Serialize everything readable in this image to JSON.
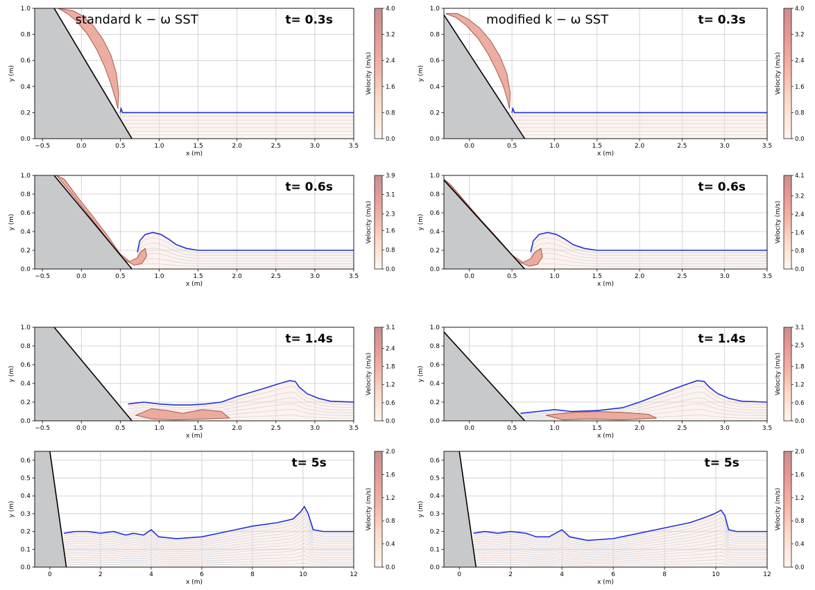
{
  "figure": {
    "xlabel": "x (m)",
    "ylabel": "y (m)",
    "colorbar_label": "Velocity (m/s)"
  },
  "chart_data": [
    {
      "id": "std-t03",
      "type": "heatmap",
      "title": "standard k − ω SST",
      "time_label": "t= 0.3s",
      "xlim": [
        -0.6,
        3.5
      ],
      "ylim": [
        0,
        1.0
      ],
      "xticks": [
        -0.5,
        0.0,
        0.5,
        1.0,
        1.5,
        2.0,
        2.5,
        3.0,
        3.5
      ],
      "yticks": [
        0.0,
        0.2,
        0.4,
        0.6,
        0.8,
        1.0
      ],
      "colorbar_ticks": [
        0.0,
        0.8,
        1.6,
        2.4,
        3.2,
        4.0
      ],
      "slope": [
        [
          -0.35,
          1.0
        ],
        [
          0.65,
          0.0
        ]
      ],
      "free_surface": [
        [
          0.5,
          0.2
        ],
        [
          0.51,
          0.23
        ],
        [
          0.53,
          0.2
        ],
        [
          1.0,
          0.2
        ],
        [
          2.0,
          0.2
        ],
        [
          3.0,
          0.2
        ],
        [
          3.5,
          0.2
        ]
      ],
      "jet": [
        [
          -0.3,
          1.0
        ],
        [
          -0.18,
          0.96
        ],
        [
          -0.06,
          0.9
        ],
        [
          0.08,
          0.8
        ],
        [
          0.2,
          0.68
        ],
        [
          0.3,
          0.55
        ],
        [
          0.38,
          0.42
        ],
        [
          0.44,
          0.3
        ],
        [
          0.47,
          0.23
        ],
        [
          0.48,
          0.35
        ],
        [
          0.45,
          0.5
        ],
        [
          0.38,
          0.64
        ],
        [
          0.28,
          0.76
        ],
        [
          0.15,
          0.87
        ],
        [
          0.02,
          0.94
        ],
        [
          -0.1,
          0.98
        ]
      ]
    },
    {
      "id": "mod-t03",
      "type": "heatmap",
      "title": "modified k − ω SST",
      "time_label": "t= 0.3s",
      "xlim": [
        -0.3,
        3.5
      ],
      "ylim": [
        0,
        1.0
      ],
      "xticks": [
        0.0,
        0.5,
        1.0,
        1.5,
        2.0,
        2.5,
        3.0,
        3.5
      ],
      "yticks": [
        0.0,
        0.2,
        0.4,
        0.6,
        0.8,
        1.0
      ],
      "colorbar_ticks": [
        0.0,
        0.8,
        1.6,
        2.4,
        3.2,
        4.0
      ],
      "slope": [
        [
          -0.3,
          0.95
        ],
        [
          0.65,
          0.0
        ]
      ],
      "free_surface": [
        [
          0.5,
          0.2
        ],
        [
          0.51,
          0.23
        ],
        [
          0.53,
          0.2
        ],
        [
          1.0,
          0.2
        ],
        [
          2.0,
          0.2
        ],
        [
          3.0,
          0.2
        ],
        [
          3.5,
          0.2
        ]
      ],
      "jet": [
        [
          -0.28,
          0.96
        ],
        [
          -0.16,
          0.93
        ],
        [
          -0.04,
          0.87
        ],
        [
          0.1,
          0.77
        ],
        [
          0.22,
          0.65
        ],
        [
          0.32,
          0.52
        ],
        [
          0.4,
          0.4
        ],
        [
          0.45,
          0.29
        ],
        [
          0.47,
          0.23
        ],
        [
          0.48,
          0.35
        ],
        [
          0.44,
          0.5
        ],
        [
          0.36,
          0.63
        ],
        [
          0.25,
          0.75
        ],
        [
          0.12,
          0.85
        ],
        [
          -0.02,
          0.92
        ],
        [
          -0.14,
          0.96
        ]
      ]
    },
    {
      "id": "std-t06",
      "type": "heatmap",
      "title": "",
      "time_label": "t= 0.6s",
      "xlim": [
        -0.6,
        3.5
      ],
      "ylim": [
        0,
        1.0
      ],
      "xticks": [
        -0.5,
        0.0,
        0.5,
        1.0,
        1.5,
        2.0,
        2.5,
        3.0,
        3.5
      ],
      "yticks": [
        0.0,
        0.2,
        0.4,
        0.6,
        0.8,
        1.0
      ],
      "colorbar_ticks": [
        0.0,
        0.8,
        1.6,
        2.3,
        3.1,
        3.9
      ],
      "slope": [
        [
          -0.35,
          1.0
        ],
        [
          0.65,
          0.0
        ]
      ],
      "free_surface": [
        [
          0.72,
          0.18
        ],
        [
          0.75,
          0.3
        ],
        [
          0.82,
          0.37
        ],
        [
          0.92,
          0.39
        ],
        [
          1.02,
          0.37
        ],
        [
          1.12,
          0.32
        ],
        [
          1.22,
          0.26
        ],
        [
          1.35,
          0.22
        ],
        [
          1.5,
          0.2
        ],
        [
          2.0,
          0.2
        ],
        [
          3.0,
          0.2
        ],
        [
          3.5,
          0.2
        ]
      ],
      "jet": [
        [
          -0.32,
          1.0
        ],
        [
          -0.15,
          0.83
        ],
        [
          0.05,
          0.62
        ],
        [
          0.25,
          0.41
        ],
        [
          0.42,
          0.22
        ],
        [
          0.55,
          0.1
        ],
        [
          0.68,
          0.04
        ],
        [
          0.78,
          0.06
        ],
        [
          0.84,
          0.14
        ],
        [
          0.82,
          0.22
        ],
        [
          0.76,
          0.18
        ],
        [
          0.72,
          0.12
        ],
        [
          0.62,
          0.08
        ],
        [
          0.5,
          0.16
        ],
        [
          0.35,
          0.34
        ],
        [
          0.15,
          0.56
        ],
        [
          -0.05,
          0.77
        ],
        [
          -0.22,
          0.96
        ]
      ]
    },
    {
      "id": "mod-t06",
      "type": "heatmap",
      "title": "",
      "time_label": "t= 0.6s",
      "xlim": [
        -0.3,
        3.5
      ],
      "ylim": [
        0,
        1.0
      ],
      "xticks": [
        0.0,
        0.5,
        1.0,
        1.5,
        2.0,
        2.5,
        3.0,
        3.5
      ],
      "yticks": [
        0.0,
        0.2,
        0.4,
        0.6,
        0.8,
        1.0
      ],
      "colorbar_ticks": [
        0.0,
        0.8,
        1.6,
        2.4,
        3.2,
        4.1
      ],
      "slope": [
        [
          -0.3,
          0.95
        ],
        [
          0.65,
          0.0
        ]
      ],
      "free_surface": [
        [
          0.72,
          0.18
        ],
        [
          0.75,
          0.3
        ],
        [
          0.82,
          0.37
        ],
        [
          0.92,
          0.39
        ],
        [
          1.02,
          0.37
        ],
        [
          1.12,
          0.32
        ],
        [
          1.22,
          0.26
        ],
        [
          1.35,
          0.22
        ],
        [
          1.5,
          0.2
        ],
        [
          2.0,
          0.2
        ],
        [
          3.0,
          0.2
        ],
        [
          3.5,
          0.2
        ]
      ],
      "jet": [
        [
          -0.3,
          0.96
        ],
        [
          -0.12,
          0.78
        ],
        [
          0.08,
          0.58
        ],
        [
          0.28,
          0.38
        ],
        [
          0.45,
          0.2
        ],
        [
          0.57,
          0.08
        ],
        [
          0.7,
          0.03
        ],
        [
          0.8,
          0.05
        ],
        [
          0.86,
          0.13
        ],
        [
          0.84,
          0.22
        ],
        [
          0.77,
          0.18
        ],
        [
          0.72,
          0.11
        ],
        [
          0.63,
          0.07
        ],
        [
          0.5,
          0.15
        ],
        [
          0.34,
          0.32
        ],
        [
          0.14,
          0.52
        ],
        [
          -0.06,
          0.73
        ],
        [
          -0.22,
          0.9
        ]
      ]
    },
    {
      "id": "std-t14",
      "type": "heatmap",
      "title": "",
      "time_label": "t= 1.4s",
      "xlim": [
        -0.6,
        3.5
      ],
      "ylim": [
        0,
        1.0
      ],
      "xticks": [
        -0.5,
        0.0,
        0.5,
        1.0,
        1.5,
        2.0,
        2.5,
        3.0,
        3.5
      ],
      "yticks": [
        0.0,
        0.2,
        0.4,
        0.6,
        0.8,
        1.0
      ],
      "colorbar_ticks": [
        0.0,
        0.6,
        1.2,
        1.8,
        2.4,
        3.1
      ],
      "slope": [
        [
          -0.35,
          1.0
        ],
        [
          0.65,
          0.0
        ]
      ],
      "free_surface": [
        [
          0.6,
          0.18
        ],
        [
          0.8,
          0.2
        ],
        [
          1.0,
          0.18
        ],
        [
          1.2,
          0.17
        ],
        [
          1.4,
          0.17
        ],
        [
          1.6,
          0.18
        ],
        [
          1.8,
          0.2
        ],
        [
          2.0,
          0.26
        ],
        [
          2.2,
          0.31
        ],
        [
          2.4,
          0.36
        ],
        [
          2.55,
          0.4
        ],
        [
          2.68,
          0.43
        ],
        [
          2.75,
          0.42
        ],
        [
          2.8,
          0.36
        ],
        [
          2.9,
          0.29
        ],
        [
          3.05,
          0.24
        ],
        [
          3.2,
          0.21
        ],
        [
          3.5,
          0.2
        ]
      ],
      "jet": [
        [
          0.7,
          0.06
        ],
        [
          0.9,
          0.13
        ],
        [
          1.1,
          0.11
        ],
        [
          1.3,
          0.08
        ],
        [
          1.55,
          0.12
        ],
        [
          1.8,
          0.1
        ],
        [
          1.9,
          0.03
        ],
        [
          1.6,
          0.02
        ],
        [
          1.2,
          0.01
        ],
        [
          0.9,
          0.02
        ]
      ]
    },
    {
      "id": "mod-t14",
      "type": "heatmap",
      "title": "",
      "time_label": "t= 1.4s",
      "xlim": [
        -0.3,
        3.5
      ],
      "ylim": [
        0,
        1.0
      ],
      "xticks": [
        0.0,
        0.5,
        1.0,
        1.5,
        2.0,
        2.5,
        3.0,
        3.5
      ],
      "yticks": [
        0.0,
        0.2,
        0.4,
        0.6,
        0.8,
        1.0
      ],
      "colorbar_ticks": [
        0.0,
        0.6,
        1.2,
        1.8,
        2.5,
        3.1
      ],
      "slope": [
        [
          -0.3,
          0.95
        ],
        [
          0.65,
          0.0
        ]
      ],
      "free_surface": [
        [
          0.6,
          0.08
        ],
        [
          0.8,
          0.1
        ],
        [
          1.0,
          0.12
        ],
        [
          1.2,
          0.1
        ],
        [
          1.5,
          0.11
        ],
        [
          1.8,
          0.14
        ],
        [
          2.0,
          0.2
        ],
        [
          2.2,
          0.27
        ],
        [
          2.4,
          0.34
        ],
        [
          2.55,
          0.39
        ],
        [
          2.68,
          0.43
        ],
        [
          2.76,
          0.42
        ],
        [
          2.82,
          0.36
        ],
        [
          2.92,
          0.29
        ],
        [
          3.05,
          0.24
        ],
        [
          3.2,
          0.21
        ],
        [
          3.5,
          0.2
        ]
      ],
      "jet": [
        [
          0.9,
          0.06
        ],
        [
          1.2,
          0.09
        ],
        [
          1.5,
          0.1
        ],
        [
          1.8,
          0.09
        ],
        [
          2.1,
          0.07
        ],
        [
          2.2,
          0.03
        ],
        [
          1.8,
          0.01
        ],
        [
          1.4,
          0.02
        ],
        [
          1.1,
          0.01
        ]
      ]
    },
    {
      "id": "std-t5",
      "type": "heatmap",
      "title": "",
      "time_label": "t= 5s",
      "xlim": [
        -0.6,
        12
      ],
      "ylim": [
        0,
        0.65
      ],
      "xticks": [
        0,
        2,
        4,
        6,
        8,
        10,
        12
      ],
      "yticks": [
        0.0,
        0.1,
        0.2,
        0.3,
        0.4,
        0.5,
        0.6
      ],
      "colorbar_ticks": [
        0.0,
        0.4,
        0.8,
        1.2,
        1.6,
        2.0
      ],
      "slope": [
        [
          0.0,
          0.65
        ],
        [
          0.65,
          0.0
        ]
      ],
      "free_surface": [
        [
          0.55,
          0.19
        ],
        [
          1.0,
          0.2
        ],
        [
          1.5,
          0.2
        ],
        [
          2.0,
          0.19
        ],
        [
          2.5,
          0.2
        ],
        [
          3.0,
          0.18
        ],
        [
          3.3,
          0.19
        ],
        [
          3.7,
          0.18
        ],
        [
          4.0,
          0.21
        ],
        [
          4.3,
          0.17
        ],
        [
          5.0,
          0.16
        ],
        [
          6.0,
          0.17
        ],
        [
          7.0,
          0.2
        ],
        [
          8.0,
          0.23
        ],
        [
          9.0,
          0.25
        ],
        [
          9.6,
          0.27
        ],
        [
          9.9,
          0.31
        ],
        [
          10.05,
          0.34
        ],
        [
          10.2,
          0.3
        ],
        [
          10.4,
          0.21
        ],
        [
          10.8,
          0.2
        ],
        [
          12.0,
          0.2
        ]
      ],
      "jet": []
    },
    {
      "id": "mod-t5",
      "type": "heatmap",
      "title": "",
      "time_label": "t= 5s",
      "xlim": [
        -0.6,
        12
      ],
      "ylim": [
        0,
        0.65
      ],
      "xticks": [
        0,
        2,
        4,
        6,
        8,
        10,
        12
      ],
      "yticks": [
        0.0,
        0.1,
        0.2,
        0.3,
        0.4,
        0.5,
        0.6
      ],
      "colorbar_ticks": [
        0.0,
        0.4,
        0.8,
        1.2,
        1.6,
        2.0
      ],
      "slope": [
        [
          0.0,
          0.65
        ],
        [
          0.65,
          0.0
        ]
      ],
      "free_surface": [
        [
          0.55,
          0.19
        ],
        [
          1.0,
          0.2
        ],
        [
          1.5,
          0.19
        ],
        [
          2.0,
          0.2
        ],
        [
          2.6,
          0.19
        ],
        [
          3.0,
          0.17
        ],
        [
          3.5,
          0.17
        ],
        [
          4.0,
          0.21
        ],
        [
          4.3,
          0.17
        ],
        [
          5.0,
          0.15
        ],
        [
          6.0,
          0.16
        ],
        [
          7.0,
          0.19
        ],
        [
          8.0,
          0.22
        ],
        [
          9.0,
          0.25
        ],
        [
          9.6,
          0.28
        ],
        [
          9.95,
          0.3
        ],
        [
          10.2,
          0.32
        ],
        [
          10.35,
          0.29
        ],
        [
          10.5,
          0.21
        ],
        [
          10.8,
          0.2
        ],
        [
          12.0,
          0.2
        ]
      ],
      "jet": []
    }
  ]
}
